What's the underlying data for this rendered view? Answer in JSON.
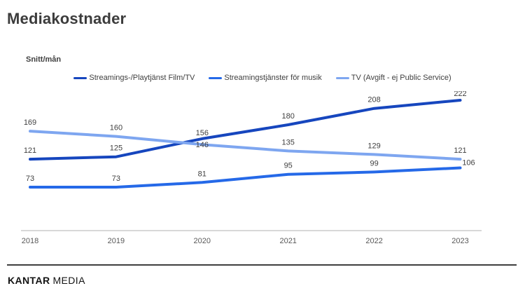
{
  "title": "Mediakostnader",
  "footer": {
    "brand_bold": "KANTAR",
    "brand_light": "MEDIA"
  },
  "colors": {
    "title_text": "#3c3c3c",
    "label_text": "#404040",
    "tick_text": "#595959",
    "axis_line": "#b0b0b0",
    "footer_line": "#3f3f3f"
  },
  "chart_data": {
    "type": "line",
    "title": "Mediakostnader",
    "xlabel": "",
    "ylabel": "Snitt/mån",
    "categories": [
      "2018",
      "2019",
      "2020",
      "2021",
      "2022",
      "2023"
    ],
    "series": [
      {
        "name": "Streamings-/Playtjänst Film/TV",
        "color": "#1646be",
        "values": [
          121,
          125,
          156,
          180,
          208,
          222
        ]
      },
      {
        "name": "Streamingstjänster för musik",
        "color": "#2569e8",
        "values": [
          73,
          73,
          81,
          95,
          99,
          106
        ]
      },
      {
        "name": "TV (Avgift - ej Public Service)",
        "color": "#7ea6f0",
        "values": [
          169,
          160,
          146,
          135,
          129,
          121
        ]
      }
    ],
    "data_labels": true,
    "legend_position": "top",
    "grid": false,
    "y_axis_visible": false,
    "ylim": [
      60,
      240
    ]
  }
}
